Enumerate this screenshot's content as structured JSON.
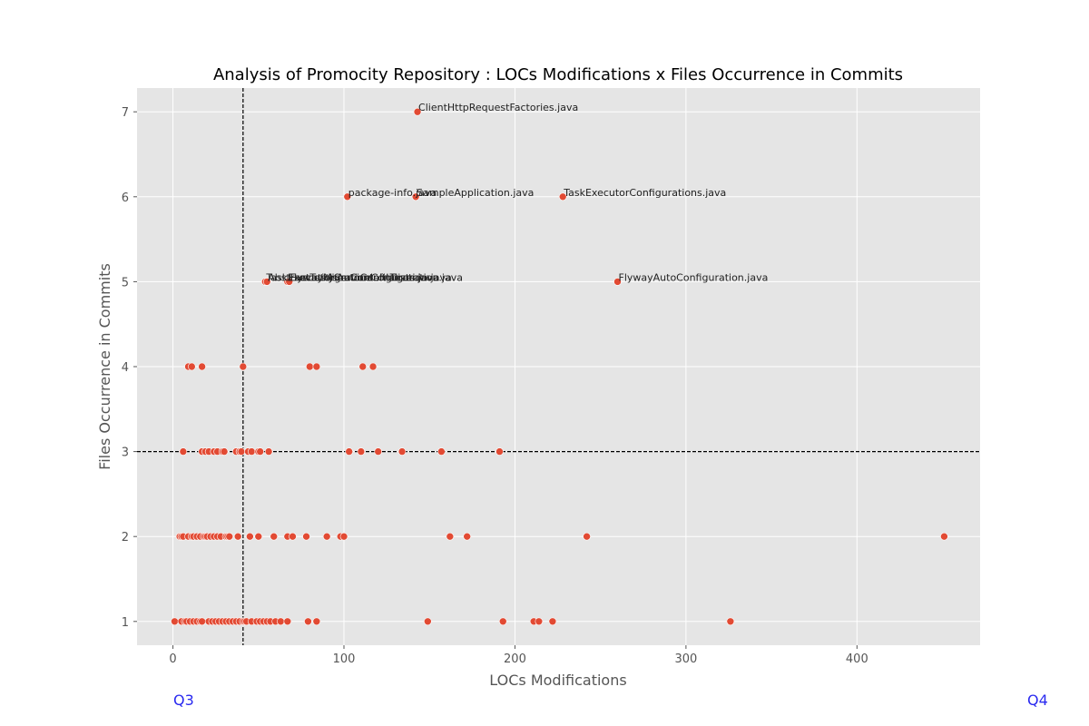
{
  "chart_data": {
    "type": "scatter",
    "title": "Analysis of Promocity Repository : LOCs Modifications x Files Occurrence in Commits",
    "xlabel": "LOCs Modifications",
    "ylabel": "Files Occurrence in Commits",
    "xlim": [
      -21,
      472
    ],
    "ylim": [
      0.72,
      7.28
    ],
    "xticks": [
      0,
      100,
      200,
      300,
      400
    ],
    "yticks": [
      1,
      2,
      3,
      4,
      5,
      6,
      7
    ],
    "grid": true,
    "point_color": "#E24A33",
    "reference_lines": {
      "x": 41,
      "y": 3
    },
    "quadrant_labels": {
      "left": "Q3",
      "right": "Q4"
    },
    "points": [
      {
        "x": 143,
        "y": 7,
        "label": "ClientHttpRequestFactories.java"
      },
      {
        "x": 102,
        "y": 6,
        "label": "package-info.java"
      },
      {
        "x": 142,
        "y": 6,
        "label": "SampleApplication.java"
      },
      {
        "x": 228,
        "y": 6,
        "label": "TaskExecutorConfigurations.java"
      },
      {
        "x": 54,
        "y": 5,
        "label": "TaskExecutionAutoConfiguration.java"
      },
      {
        "x": 55,
        "y": 5,
        "label": "AbstractTestJsonContentTests.java"
      },
      {
        "x": 67,
        "y": 5,
        "label": "FlywayMigrationInitializer.java"
      },
      {
        "x": 68,
        "y": 5,
        "label": "ExecutorServiceConfiguration.java"
      },
      {
        "x": 260,
        "y": 5,
        "label": "FlywayAutoConfiguration.java"
      },
      {
        "x": 9,
        "y": 4
      },
      {
        "x": 11,
        "y": 4
      },
      {
        "x": 17,
        "y": 4
      },
      {
        "x": 41,
        "y": 4
      },
      {
        "x": 80,
        "y": 4
      },
      {
        "x": 84,
        "y": 4
      },
      {
        "x": 111,
        "y": 4
      },
      {
        "x": 117,
        "y": 4
      },
      {
        "x": 6,
        "y": 3
      },
      {
        "x": 17,
        "y": 3
      },
      {
        "x": 19,
        "y": 3
      },
      {
        "x": 21,
        "y": 3
      },
      {
        "x": 24,
        "y": 3
      },
      {
        "x": 26,
        "y": 3
      },
      {
        "x": 29,
        "y": 3
      },
      {
        "x": 30,
        "y": 3
      },
      {
        "x": 37,
        "y": 3
      },
      {
        "x": 39,
        "y": 3
      },
      {
        "x": 40,
        "y": 3
      },
      {
        "x": 44,
        "y": 3
      },
      {
        "x": 46,
        "y": 3
      },
      {
        "x": 50,
        "y": 3
      },
      {
        "x": 51,
        "y": 3
      },
      {
        "x": 56,
        "y": 3
      },
      {
        "x": 103,
        "y": 3
      },
      {
        "x": 110,
        "y": 3
      },
      {
        "x": 120,
        "y": 3
      },
      {
        "x": 134,
        "y": 3
      },
      {
        "x": 157,
        "y": 3
      },
      {
        "x": 191,
        "y": 3
      },
      {
        "x": 4,
        "y": 2
      },
      {
        "x": 5,
        "y": 2
      },
      {
        "x": 6,
        "y": 2
      },
      {
        "x": 9,
        "y": 2
      },
      {
        "x": 11,
        "y": 2
      },
      {
        "x": 12,
        "y": 2
      },
      {
        "x": 14,
        "y": 2
      },
      {
        "x": 16,
        "y": 2
      },
      {
        "x": 18,
        "y": 2
      },
      {
        "x": 19,
        "y": 2
      },
      {
        "x": 20,
        "y": 2
      },
      {
        "x": 22,
        "y": 2
      },
      {
        "x": 24,
        "y": 2
      },
      {
        "x": 26,
        "y": 2
      },
      {
        "x": 28,
        "y": 2
      },
      {
        "x": 31,
        "y": 2
      },
      {
        "x": 32,
        "y": 2
      },
      {
        "x": 33,
        "y": 2
      },
      {
        "x": 38,
        "y": 2
      },
      {
        "x": 45,
        "y": 2
      },
      {
        "x": 50,
        "y": 2
      },
      {
        "x": 59,
        "y": 2
      },
      {
        "x": 67,
        "y": 2
      },
      {
        "x": 70,
        "y": 2
      },
      {
        "x": 78,
        "y": 2
      },
      {
        "x": 90,
        "y": 2
      },
      {
        "x": 98,
        "y": 2
      },
      {
        "x": 100,
        "y": 2
      },
      {
        "x": 162,
        "y": 2
      },
      {
        "x": 172,
        "y": 2
      },
      {
        "x": 242,
        "y": 2
      },
      {
        "x": 451,
        "y": 2
      },
      {
        "x": 1,
        "y": 1
      },
      {
        "x": 5,
        "y": 1
      },
      {
        "x": 7,
        "y": 1
      },
      {
        "x": 8,
        "y": 1
      },
      {
        "x": 10,
        "y": 1
      },
      {
        "x": 12,
        "y": 1
      },
      {
        "x": 14,
        "y": 1
      },
      {
        "x": 16,
        "y": 1
      },
      {
        "x": 17,
        "y": 1
      },
      {
        "x": 21,
        "y": 1
      },
      {
        "x": 23,
        "y": 1
      },
      {
        "x": 25,
        "y": 1
      },
      {
        "x": 27,
        "y": 1
      },
      {
        "x": 29,
        "y": 1
      },
      {
        "x": 31,
        "y": 1
      },
      {
        "x": 33,
        "y": 1
      },
      {
        "x": 35,
        "y": 1
      },
      {
        "x": 37,
        "y": 1
      },
      {
        "x": 39,
        "y": 1
      },
      {
        "x": 41,
        "y": 1
      },
      {
        "x": 42,
        "y": 1
      },
      {
        "x": 43,
        "y": 1
      },
      {
        "x": 46,
        "y": 1
      },
      {
        "x": 49,
        "y": 1
      },
      {
        "x": 51,
        "y": 1
      },
      {
        "x": 53,
        "y": 1
      },
      {
        "x": 55,
        "y": 1
      },
      {
        "x": 57,
        "y": 1
      },
      {
        "x": 60,
        "y": 1
      },
      {
        "x": 63,
        "y": 1
      },
      {
        "x": 67,
        "y": 1
      },
      {
        "x": 79,
        "y": 1
      },
      {
        "x": 84,
        "y": 1
      },
      {
        "x": 149,
        "y": 1
      },
      {
        "x": 193,
        "y": 1
      },
      {
        "x": 211,
        "y": 1
      },
      {
        "x": 214,
        "y": 1
      },
      {
        "x": 222,
        "y": 1
      },
      {
        "x": 326,
        "y": 1
      }
    ]
  }
}
